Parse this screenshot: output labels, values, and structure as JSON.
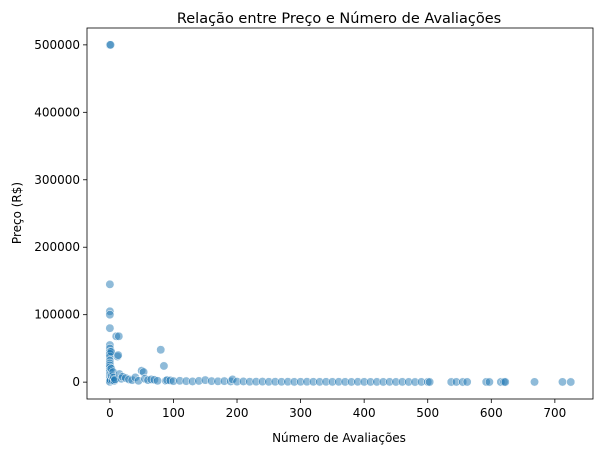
{
  "chart_data": {
    "type": "scatter",
    "title": "Relação entre Preço e Número de Avaliações",
    "xlabel": "Número de Avaliações",
    "ylabel": "Preço (R$)",
    "xlim": [
      -36,
      760
    ],
    "ylim": [
      -25000,
      525000
    ],
    "xticks": [
      0,
      100,
      200,
      300,
      400,
      500,
      600,
      700
    ],
    "yticks": [
      0,
      100000,
      200000,
      300000,
      400000,
      500000
    ],
    "grid": false,
    "legend": "none",
    "point_color": "#1f77b4",
    "point_alpha": 0.5,
    "points": [
      [
        0,
        500000
      ],
      [
        1,
        500000
      ],
      [
        0,
        145000
      ],
      [
        0,
        105000
      ],
      [
        0,
        100000
      ],
      [
        0,
        80000
      ],
      [
        0,
        55000
      ],
      [
        0,
        50000
      ],
      [
        0,
        45000
      ],
      [
        0,
        42000
      ],
      [
        0,
        38000
      ],
      [
        0,
        32000
      ],
      [
        0,
        28000
      ],
      [
        0,
        25000
      ],
      [
        0,
        22000
      ],
      [
        0,
        18000
      ],
      [
        0,
        15000
      ],
      [
        0,
        12000
      ],
      [
        0,
        10000
      ],
      [
        0,
        8000
      ],
      [
        0,
        6000
      ],
      [
        0,
        4000
      ],
      [
        0,
        2000
      ],
      [
        0,
        500
      ],
      [
        1,
        3000
      ],
      [
        2,
        45000
      ],
      [
        2,
        20000
      ],
      [
        3,
        9000
      ],
      [
        4,
        3000
      ],
      [
        5,
        15000
      ],
      [
        6,
        7000
      ],
      [
        7,
        2000
      ],
      [
        8,
        4000
      ],
      [
        10,
        68000
      ],
      [
        14,
        68000
      ],
      [
        12,
        38000
      ],
      [
        13,
        40000
      ],
      [
        15,
        12000
      ],
      [
        18,
        5000
      ],
      [
        20,
        8000
      ],
      [
        25,
        6000
      ],
      [
        30,
        4000
      ],
      [
        35,
        3000
      ],
      [
        40,
        7000
      ],
      [
        45,
        2000
      ],
      [
        50,
        17000
      ],
      [
        53,
        15000
      ],
      [
        55,
        5000
      ],
      [
        60,
        3000
      ],
      [
        65,
        4000
      ],
      [
        70,
        3500
      ],
      [
        75,
        2000
      ],
      [
        80,
        48000
      ],
      [
        85,
        24000
      ],
      [
        88,
        2000
      ],
      [
        90,
        3000
      ],
      [
        95,
        2500
      ],
      [
        100,
        1500
      ],
      [
        110,
        2000
      ],
      [
        120,
        1500
      ],
      [
        130,
        1000
      ],
      [
        140,
        1800
      ],
      [
        150,
        3000
      ],
      [
        160,
        1500
      ],
      [
        170,
        1200
      ],
      [
        180,
        1500
      ],
      [
        190,
        1000
      ],
      [
        193,
        4000
      ],
      [
        200,
        800
      ],
      [
        210,
        1000
      ],
      [
        220,
        600
      ],
      [
        230,
        700
      ],
      [
        240,
        800
      ],
      [
        250,
        500
      ],
      [
        260,
        600
      ],
      [
        270,
        500
      ],
      [
        280,
        600
      ],
      [
        290,
        400
      ],
      [
        300,
        500
      ],
      [
        310,
        600
      ],
      [
        320,
        500
      ],
      [
        330,
        400
      ],
      [
        340,
        500
      ],
      [
        350,
        400
      ],
      [
        360,
        500
      ],
      [
        370,
        400
      ],
      [
        380,
        300
      ],
      [
        390,
        500
      ],
      [
        400,
        400
      ],
      [
        410,
        300
      ],
      [
        420,
        400
      ],
      [
        430,
        300
      ],
      [
        440,
        400
      ],
      [
        450,
        300
      ],
      [
        460,
        400
      ],
      [
        470,
        300
      ],
      [
        480,
        200
      ],
      [
        490,
        300
      ],
      [
        500,
        300
      ],
      [
        503,
        200
      ],
      [
        537,
        200
      ],
      [
        545,
        300
      ],
      [
        555,
        200
      ],
      [
        562,
        300
      ],
      [
        592,
        300
      ],
      [
        597,
        200
      ],
      [
        615,
        200
      ],
      [
        620,
        300
      ],
      [
        622,
        200
      ],
      [
        668,
        300
      ],
      [
        712,
        300
      ],
      [
        725,
        200
      ]
    ]
  }
}
